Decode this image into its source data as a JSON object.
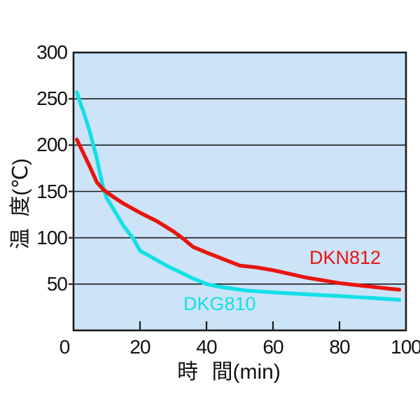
{
  "chart_data": {
    "type": "line",
    "title": "",
    "xlabel": "時 間(min)",
    "ylabel": "温 度(℃)",
    "xlim": [
      0,
      100
    ],
    "ylim": [
      0,
      300
    ],
    "xticks": [
      0,
      20,
      40,
      60,
      80,
      100
    ],
    "yticks": [
      300,
      250,
      200,
      150,
      100,
      50
    ],
    "grid": "horizontal gridlines only, black, on light-blue plot background",
    "legend_position": "inline colored labels next to each curve",
    "plot_bg": "#cde3f8",
    "axis_color": "#1c1c1c",
    "text_color": "#111111",
    "series": [
      {
        "name": "DKN812",
        "color": "#e8150d",
        "points": [
          [
            1,
            206
          ],
          [
            3,
            191
          ],
          [
            5,
            176
          ],
          [
            7,
            160
          ],
          [
            9,
            152
          ],
          [
            12,
            144
          ],
          [
            15,
            137
          ],
          [
            20,
            127
          ],
          [
            25,
            118
          ],
          [
            30,
            107
          ],
          [
            33,
            99
          ],
          [
            36,
            90
          ],
          [
            40,
            84
          ],
          [
            45,
            77
          ],
          [
            50,
            70
          ],
          [
            55,
            68
          ],
          [
            60,
            65
          ],
          [
            65,
            61
          ],
          [
            70,
            57
          ],
          [
            75,
            54
          ],
          [
            80,
            51
          ],
          [
            85,
            49
          ],
          [
            90,
            47
          ],
          [
            95,
            45
          ],
          [
            98,
            44
          ]
        ]
      },
      {
        "name": "DKG810",
        "color": "#12e0e6",
        "points": [
          [
            1,
            257
          ],
          [
            2,
            246
          ],
          [
            3,
            236
          ],
          [
            4,
            225
          ],
          [
            5,
            213
          ],
          [
            6,
            199
          ],
          [
            7,
            186
          ],
          [
            8,
            169
          ],
          [
            9,
            153
          ],
          [
            10,
            143
          ],
          [
            12,
            131
          ],
          [
            15,
            113
          ],
          [
            18,
            99
          ],
          [
            20,
            86
          ],
          [
            23,
            80
          ],
          [
            26,
            74
          ],
          [
            29,
            68
          ],
          [
            32,
            63
          ],
          [
            36,
            56
          ],
          [
            40,
            50
          ],
          [
            44,
            47
          ],
          [
            48,
            45
          ],
          [
            52,
            43
          ],
          [
            56,
            42
          ],
          [
            60,
            41
          ],
          [
            65,
            40
          ],
          [
            70,
            39
          ],
          [
            75,
            38
          ],
          [
            80,
            37
          ],
          [
            85,
            36
          ],
          [
            90,
            35
          ],
          [
            94,
            34
          ],
          [
            98,
            33
          ]
        ]
      }
    ]
  }
}
